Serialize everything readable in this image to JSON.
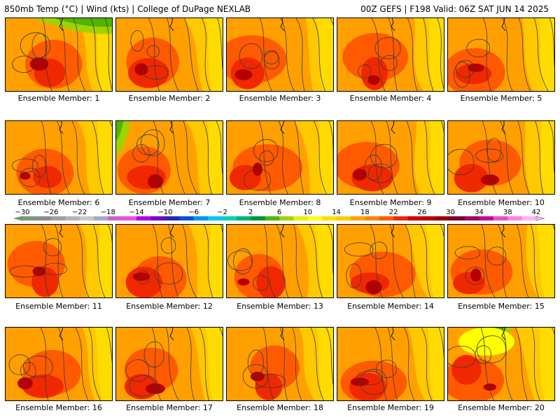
{
  "header": {
    "left_title": "850mb Temp (°C) | Wind (kts) | College of DuPage NEXLAB",
    "right_title": "00Z GEFS | F198 Valid: 06Z SAT JUN 14 2025"
  },
  "members": [
    "Ensemble Member: 1",
    "Ensemble Member: 2",
    "Ensemble Member: 3",
    "Ensemble Member: 4",
    "Ensemble Member: 5",
    "Ensemble Member: 6",
    "Ensemble Member: 7",
    "Ensemble Member: 8",
    "Ensemble Member: 9",
    "Ensemble Member: 10",
    "Ensemble Member: 11",
    "Ensemble Member: 12",
    "Ensemble Member: 13",
    "Ensemble Member: 14",
    "Ensemble Member: 15",
    "Ensemble Member: 16",
    "Ensemble Member: 17",
    "Ensemble Member: 18",
    "Ensemble Member: 19",
    "Ensemble Member: 20"
  ],
  "colorbar": {
    "tick_labels": [
      "−30",
      "−26",
      "−22",
      "−18",
      "−14",
      "−10",
      "−6",
      "−2",
      "2",
      "6",
      "10",
      "14",
      "18",
      "22",
      "26",
      "30",
      "34",
      "38",
      "42"
    ],
    "colors": [
      "#7a9a7a",
      "#8c8c8c",
      "#a0a0a0",
      "#b4b4b4",
      "#c8c8c8",
      "#a8a8c8",
      "#c864c8",
      "#e650e6",
      "#b400e6",
      "#7800c8",
      "#2828b4",
      "#0050e6",
      "#0096f0",
      "#00c8f0",
      "#00d2b4",
      "#00b478",
      "#009632",
      "#50b400",
      "#a0d200",
      "#e6f000",
      "#ffff00",
      "#ffdc00",
      "#ffc800",
      "#ffa000",
      "#ff8200",
      "#ff5a00",
      "#f02800",
      "#d20000",
      "#b40000",
      "#960000",
      "#780032",
      "#a00064",
      "#c80096",
      "#e650c8",
      "#ff82e6",
      "#ffb4f0"
    ]
  }
}
